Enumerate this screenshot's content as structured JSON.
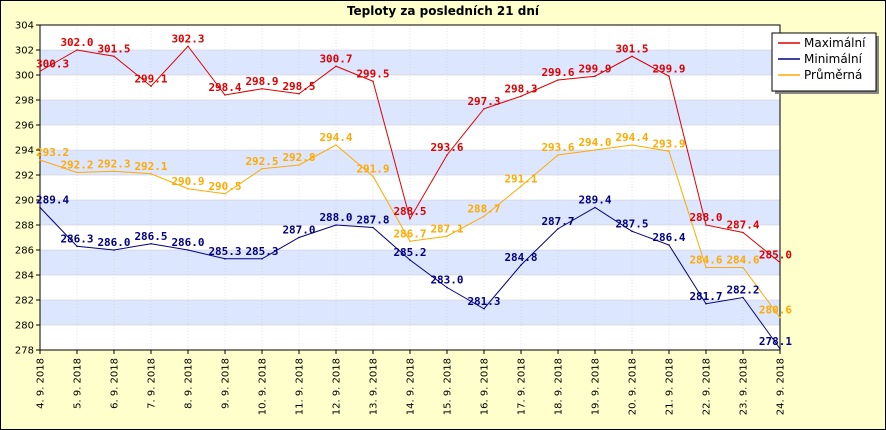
{
  "chart_data": {
    "type": "line",
    "title": "Teploty za posledních 21 dní",
    "xlabel": "",
    "ylabel": "",
    "ylim": [
      278,
      304
    ],
    "yticks": [
      278,
      280,
      282,
      284,
      286,
      288,
      290,
      292,
      294,
      296,
      298,
      300,
      302,
      304
    ],
    "grid": true,
    "legend_position": "top-right",
    "categories": [
      "4. 9. 2018",
      "5. 9. 2018",
      "6. 9. 2018",
      "7. 9. 2018",
      "8. 9. 2018",
      "9. 9. 2018",
      "10. 9. 2018",
      "11. 9. 2018",
      "12. 9. 2018",
      "13. 9. 2018",
      "14. 9. 2018",
      "15. 9. 2018",
      "16. 9. 2018",
      "17. 9. 2018",
      "18. 9. 2018",
      "19. 9. 2018",
      "20. 9. 2018",
      "21. 9. 2018",
      "22. 9. 2018",
      "23. 9. 2018",
      "24. 9. 2018"
    ],
    "series": [
      {
        "name": "Maximální",
        "color": "#dd0000",
        "values": [
          300.3,
          302.0,
          301.5,
          299.1,
          302.3,
          298.4,
          298.9,
          298.5,
          300.7,
          299.5,
          288.5,
          293.6,
          297.3,
          298.3,
          299.6,
          299.9,
          301.5,
          299.9,
          288.0,
          287.4,
          285.0
        ]
      },
      {
        "name": "Minimální",
        "color": "#000080",
        "values": [
          289.4,
          286.3,
          286.0,
          286.5,
          286.0,
          285.3,
          285.3,
          287.0,
          288.0,
          287.8,
          285.2,
          283.0,
          281.3,
          284.8,
          287.7,
          289.4,
          287.5,
          286.4,
          281.7,
          282.2,
          278.1
        ]
      },
      {
        "name": "Průměrná",
        "color": "#ffaa00",
        "values": [
          293.2,
          292.2,
          292.3,
          292.1,
          290.9,
          290.5,
          292.5,
          292.8,
          294.4,
          291.9,
          286.7,
          287.1,
          288.7,
          291.1,
          293.6,
          294.0,
          294.4,
          293.9,
          284.6,
          284.6,
          280.6
        ]
      }
    ]
  }
}
